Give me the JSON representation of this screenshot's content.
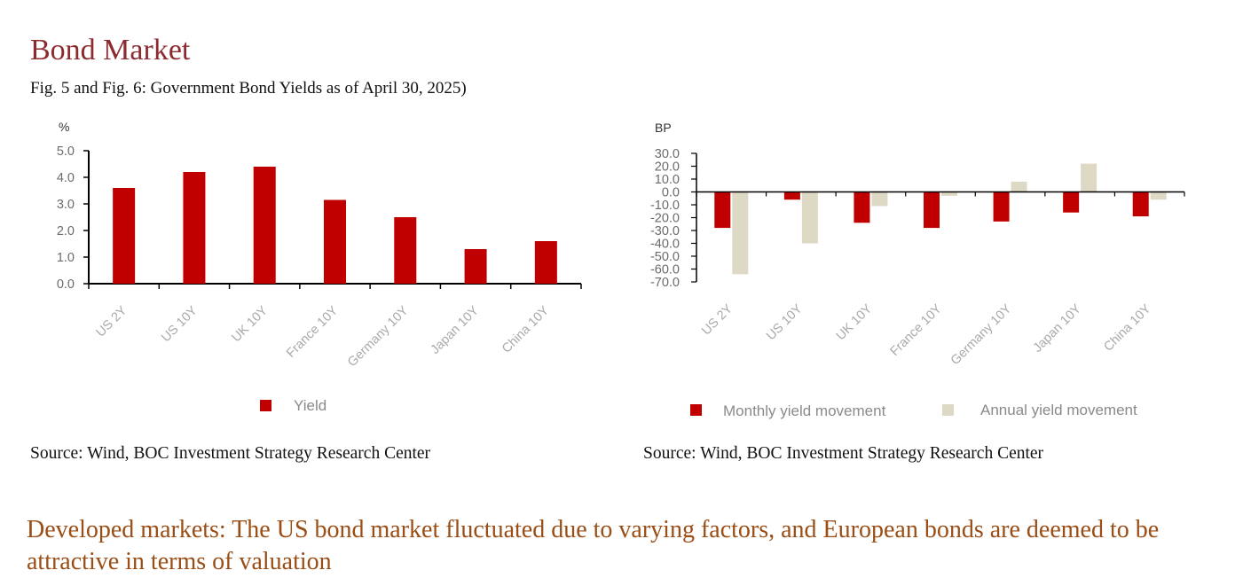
{
  "header": {
    "title": "Bond Market",
    "subtitle": "Fig. 5 and Fig. 6: Government Bond Yields as of April 30, 2025)"
  },
  "colors": {
    "yield": "#c00000",
    "monthly": "#c00000",
    "annual": "#ddd9c4",
    "title": "#8c2a2f",
    "body": "#9a4d14"
  },
  "chart_data": [
    {
      "type": "bar",
      "title": "",
      "ylabel": "%",
      "ylim": [
        0,
        5
      ],
      "yticks": [
        "0.0",
        "1.0",
        "2.0",
        "3.0",
        "4.0",
        "5.0"
      ],
      "categories": [
        "US 2Y",
        "US 10Y",
        "UK 10Y",
        "France 10Y",
        "Germany 10Y",
        "Japan 10Y",
        "China 10Y"
      ],
      "series": [
        {
          "name": "Yield",
          "values": [
            3.6,
            4.2,
            4.4,
            3.15,
            2.5,
            1.3,
            1.6
          ]
        }
      ],
      "legend": "bottom"
    },
    {
      "type": "bar",
      "title": "",
      "ylabel": "BP",
      "ylim": [
        -70,
        30
      ],
      "yticks": [
        "30.0",
        "20.0",
        "10.0",
        "0.0",
        "-10.0",
        "-20.0",
        "-30.0",
        "-40.0",
        "-50.0",
        "-60.0",
        "-70.0"
      ],
      "categories": [
        "US 2Y",
        "US 10Y",
        "UK 10Y",
        "France 10Y",
        "Germany 10Y",
        "Japan 10Y",
        "China 10Y"
      ],
      "series": [
        {
          "name": "Monthly yield movement",
          "values": [
            -28,
            -6,
            -24,
            -28,
            -23,
            -16,
            -19
          ]
        },
        {
          "name": "Annual yield movement",
          "values": [
            -64,
            -40,
            -11,
            -3,
            8,
            22,
            -6
          ]
        }
      ],
      "legend": "bottom"
    }
  ],
  "sources": {
    "left": "Source: Wind, BOC Investment Strategy Research Center",
    "right": "Source: Wind, BOC Investment Strategy Research Center"
  },
  "body_text": "Developed markets: The US bond market fluctuated due to varying factors, and European bonds are deemed to be attractive in terms of valuation"
}
